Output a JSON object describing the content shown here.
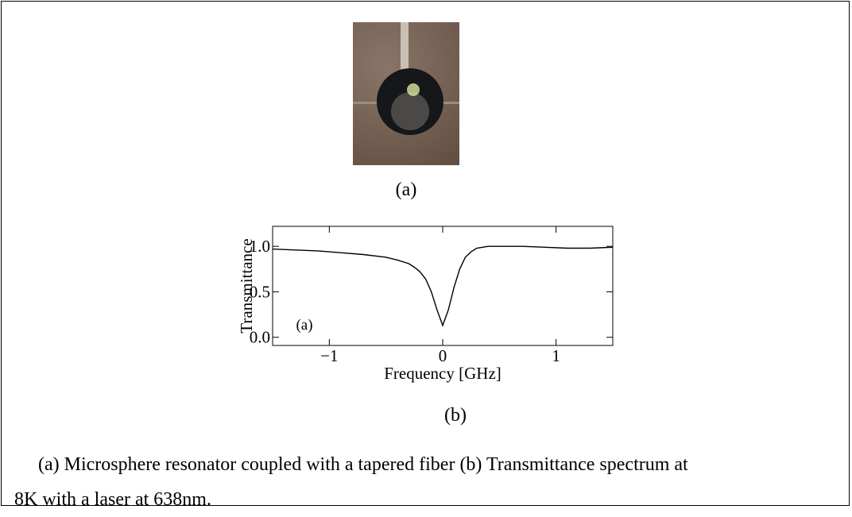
{
  "figure": {
    "image_label": "(a)",
    "chart_label": "(b)",
    "caption": "(a) Microsphere resonator coupled with a tapered fiber (b) Transmittance spectrum at 8K with a laser at 638nm."
  },
  "chart_data": {
    "type": "line",
    "xlabel": "Frequency [GHz]",
    "ylabel": "Transmittance",
    "annotation": "(a)",
    "color": "#000000",
    "x": [
      -1.5,
      -1.3,
      -1.1,
      -0.9,
      -0.7,
      -0.5,
      -0.4,
      -0.3,
      -0.25,
      -0.2,
      -0.15,
      -0.1,
      -0.05,
      0,
      0.05,
      0.1,
      0.15,
      0.2,
      0.25,
      0.3,
      0.4,
      0.5,
      0.7,
      0.9,
      1.1,
      1.3,
      1.5
    ],
    "values": [
      0.97,
      0.96,
      0.95,
      0.93,
      0.91,
      0.88,
      0.85,
      0.81,
      0.77,
      0.72,
      0.64,
      0.5,
      0.3,
      0.13,
      0.3,
      0.55,
      0.75,
      0.88,
      0.94,
      0.98,
      1.0,
      1.0,
      1.0,
      0.99,
      0.98,
      0.98,
      0.99
    ],
    "xlim": [
      -1.5,
      1.5
    ],
    "ylim": [
      -0.09,
      1.22
    ],
    "xticks": [
      {
        "value": -1,
        "label": "−1"
      },
      0,
      1
    ],
    "yticks": [
      {
        "value": 0,
        "label": "0.0"
      },
      {
        "value": 0.5,
        "label": "0.5"
      },
      {
        "value": 1,
        "label": "1.0"
      }
    ]
  }
}
